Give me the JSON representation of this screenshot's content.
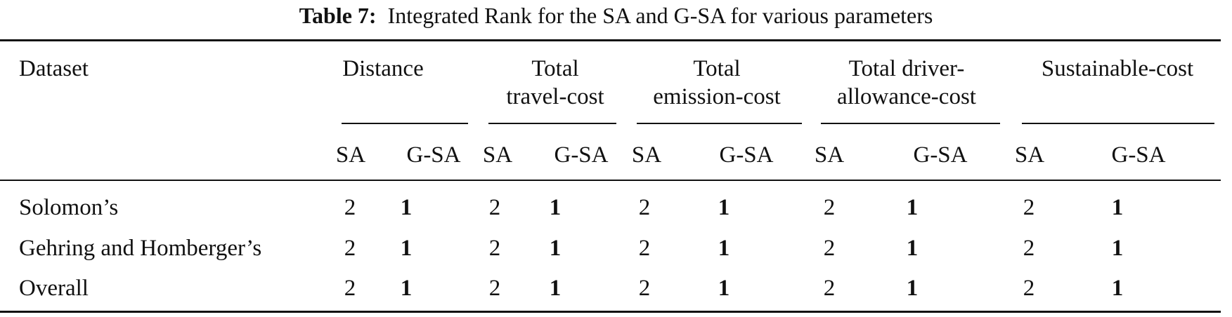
{
  "caption": {
    "label": "Table 7:",
    "text": "Integrated Rank for the SA and G-SA for various parameters"
  },
  "table": {
    "stub_header": "Dataset",
    "groups": [
      {
        "line1": "Distance",
        "line2": ""
      },
      {
        "line1": "Total",
        "line2": "travel-cost"
      },
      {
        "line1": "Total",
        "line2": "emission-cost"
      },
      {
        "line1": "Total driver-",
        "line2": "allowance-cost"
      },
      {
        "line1": "Sustainable-cost",
        "line2": ""
      }
    ],
    "subheaders": [
      "SA",
      "G-SA"
    ],
    "rows": [
      {
        "label": "Solomon’s",
        "values": [
          "2",
          "1",
          "2",
          "1",
          "2",
          "1",
          "2",
          "1",
          "2",
          "1"
        ]
      },
      {
        "label": "Gehring and Homberger’s",
        "values": [
          "2",
          "1",
          "2",
          "1",
          "2",
          "1",
          "2",
          "1",
          "2",
          "1"
        ]
      },
      {
        "label": "Overall",
        "values": [
          "2",
          "1",
          "2",
          "1",
          "2",
          "1",
          "2",
          "1",
          "2",
          "1"
        ]
      }
    ]
  }
}
